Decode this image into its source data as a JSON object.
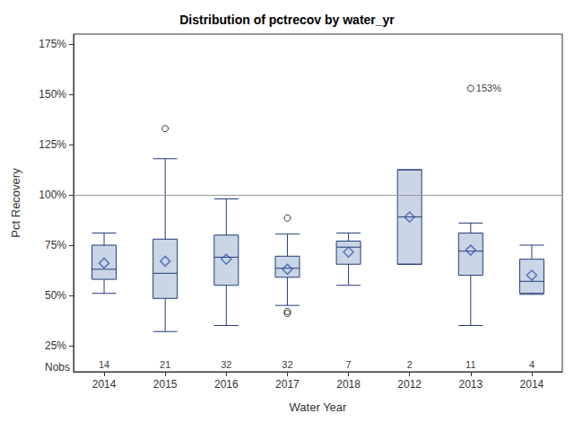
{
  "chart_data": {
    "type": "boxplot",
    "title": "Distribution of pctrecov by water_yr",
    "x_label": "Water Year",
    "y_label": "Pct Recovery",
    "categories": [
      "2014",
      "2015",
      "2016",
      "2017",
      "2018",
      "2012",
      "2013",
      "2014"
    ],
    "boxes": [
      {
        "min": 51,
        "q1": 58,
        "median": 63,
        "q3": 75,
        "max": 81,
        "mean": 66,
        "outliers": []
      },
      {
        "min": 32,
        "q1": 48.5,
        "median": 61,
        "q3": 78,
        "max": 118,
        "mean": 67,
        "outliers": [
          133
        ]
      },
      {
        "min": 35,
        "q1": 55,
        "median": 69,
        "q3": 80,
        "max": 98,
        "mean": 68,
        "outliers": []
      },
      {
        "min": 45,
        "q1": 59,
        "median": 63.5,
        "q3": 69.5,
        "max": 80.5,
        "mean": 63,
        "outliers": [
          88.5,
          42,
          41
        ]
      },
      {
        "min": 55,
        "q1": 65.5,
        "median": 74,
        "q3": 77,
        "max": 81,
        "mean": 71.5,
        "outliers": []
      },
      {
        "min": 65.5,
        "q1": 65.5,
        "median": 89,
        "q3": 112.5,
        "max": 112.5,
        "mean": 89,
        "outliers": []
      },
      {
        "min": 35,
        "q1": 60,
        "median": 72,
        "q3": 81,
        "max": 86,
        "mean": 72.5,
        "outliers": [
          153
        ]
      },
      {
        "min": 50.5,
        "q1": 51,
        "median": 57,
        "q3": 68,
        "max": 75,
        "mean": 60,
        "outliers": []
      }
    ],
    "nobs_label": "Nobs",
    "nobs": [
      14,
      21,
      32,
      32,
      7,
      2,
      11,
      4
    ],
    "annotations": [
      {
        "category_index": 6,
        "value": 153,
        "label": "153%"
      }
    ],
    "reference_line": 100,
    "color": "#cad5e5",
    "ylim": [
      12,
      180
    ],
    "yticks": [
      {
        "value": 25,
        "label": "25%"
      },
      {
        "value": 50,
        "label": "50%"
      },
      {
        "value": 75,
        "label": "75%"
      },
      {
        "value": 100,
        "label": "100%"
      },
      {
        "value": 125,
        "label": "125%"
      },
      {
        "value": 150,
        "label": "150%"
      },
      {
        "value": 175,
        "label": "175%"
      }
    ],
    "grid": false
  }
}
